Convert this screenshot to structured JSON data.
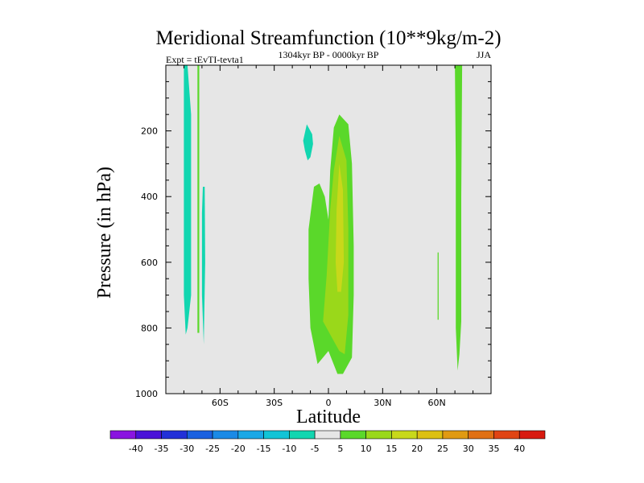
{
  "chart_data": {
    "type": "contour",
    "title": "Meridional Streamfunction (10**9kg/m-2)",
    "left_label": "Expt = tEvTI-tevta1",
    "center_label": "1304kyr BP - 0000kyr BP",
    "right_label": "JJA",
    "xlabel": "Latitude",
    "ylabel": "Pressure (in hPa)",
    "xlim": [
      -90,
      90
    ],
    "ylim": [
      0,
      1000
    ],
    "y_inverted": true,
    "x_ticks": [
      {
        "value": -60,
        "label": "60S"
      },
      {
        "value": -30,
        "label": "30S"
      },
      {
        "value": 0,
        "label": "0"
      },
      {
        "value": 30,
        "label": "30N"
      },
      {
        "value": 60,
        "label": "60N"
      }
    ],
    "y_ticks": [
      {
        "value": 200,
        "label": "200"
      },
      {
        "value": 400,
        "label": "400"
      },
      {
        "value": 600,
        "label": "600"
      },
      {
        "value": 800,
        "label": "800"
      },
      {
        "value": 1000,
        "label": "1000"
      }
    ],
    "background_color": "#e6e6e6",
    "colorbar": {
      "labels": [
        "-40",
        "-35",
        "-30",
        "-25",
        "-20",
        "-15",
        "-10",
        "-5",
        "5",
        "10",
        "15",
        "20",
        "25",
        "30",
        "35",
        "40"
      ],
      "colors": [
        "#8a14e0",
        "#4a12d8",
        "#2230d8",
        "#1a60e0",
        "#1a8ae6",
        "#1aa8e6",
        "#12c4d6",
        "#12d6b0",
        "#e6e6e6",
        "#5ad82a",
        "#9ad81a",
        "#c8d81a",
        "#dcc012",
        "#e09a12",
        "#e07014",
        "#e04414",
        "#d81a10"
      ]
    },
    "regions": [
      {
        "name": "sh-polar-neg-band",
        "level": -5,
        "points": [
          [
            -80,
            0
          ],
          [
            -78,
            0
          ],
          [
            -76,
            150
          ],
          [
            -76,
            700
          ],
          [
            -78,
            800
          ],
          [
            -79,
            820
          ],
          [
            -80,
            700
          ],
          [
            -80,
            150
          ]
        ]
      },
      {
        "name": "sh-pos-thin-band",
        "level": 5,
        "points": [
          [
            -72.5,
            0
          ],
          [
            -71.5,
            0
          ],
          [
            -71.5,
            815
          ],
          [
            -72.5,
            815
          ]
        ]
      },
      {
        "name": "sh-neg-lower-band",
        "level": -5,
        "points": [
          [
            -69.5,
            370
          ],
          [
            -68.5,
            370
          ],
          [
            -68.2,
            600
          ],
          [
            -69,
            850
          ],
          [
            -70,
            700
          ],
          [
            -70,
            450
          ]
        ]
      },
      {
        "name": "sh-subtropic-neg-blob",
        "level": -5,
        "points": [
          [
            -14,
            230
          ],
          [
            -12,
            180
          ],
          [
            -9,
            210
          ],
          [
            -8.5,
            240
          ],
          [
            -10,
            280
          ],
          [
            -11.5,
            290
          ],
          [
            -13,
            260
          ]
        ]
      },
      {
        "name": "tropic-pos-outer",
        "level": 5,
        "points": [
          [
            6,
            150
          ],
          [
            11,
            180
          ],
          [
            13,
            300
          ],
          [
            14,
            550
          ],
          [
            14,
            700
          ],
          [
            13,
            890
          ],
          [
            8,
            940
          ],
          [
            5,
            940
          ],
          [
            0,
            870
          ],
          [
            -6,
            910
          ],
          [
            -10,
            800
          ],
          [
            -11,
            650
          ],
          [
            -11,
            500
          ],
          [
            -8,
            370
          ],
          [
            -5,
            360
          ],
          [
            -2,
            400
          ],
          [
            0,
            470
          ],
          [
            1,
            320
          ],
          [
            3,
            190
          ]
        ]
      },
      {
        "name": "tropic-pos-inner",
        "level": 10,
        "points": [
          [
            6,
            215
          ],
          [
            10,
            290
          ],
          [
            11,
            500
          ],
          [
            11,
            760
          ],
          [
            9,
            880
          ],
          [
            6,
            870
          ],
          [
            3,
            840
          ],
          [
            -3,
            780
          ],
          [
            -1,
            640
          ],
          [
            0,
            540
          ],
          [
            1,
            440
          ],
          [
            3,
            320
          ]
        ]
      },
      {
        "name": "tropic-pos-core",
        "level": 15,
        "points": [
          [
            6,
            300
          ],
          [
            8,
            380
          ],
          [
            8.5,
            600
          ],
          [
            7,
            690
          ],
          [
            5,
            690
          ],
          [
            4,
            600
          ],
          [
            4.5,
            440
          ]
        ]
      },
      {
        "name": "nh-pos-thin-line",
        "level": 5,
        "points": [
          [
            60.4,
            570
          ],
          [
            61,
            570
          ],
          [
            61,
            775
          ],
          [
            60.4,
            775
          ]
        ]
      },
      {
        "name": "nh-polar-pos-band",
        "level": 5,
        "points": [
          [
            70,
            0
          ],
          [
            74,
            0
          ],
          [
            73.5,
            400
          ],
          [
            73.5,
            780
          ],
          [
            72.5,
            880
          ],
          [
            71.5,
            930
          ],
          [
            70.5,
            800
          ],
          [
            70.5,
            300
          ]
        ]
      }
    ]
  }
}
